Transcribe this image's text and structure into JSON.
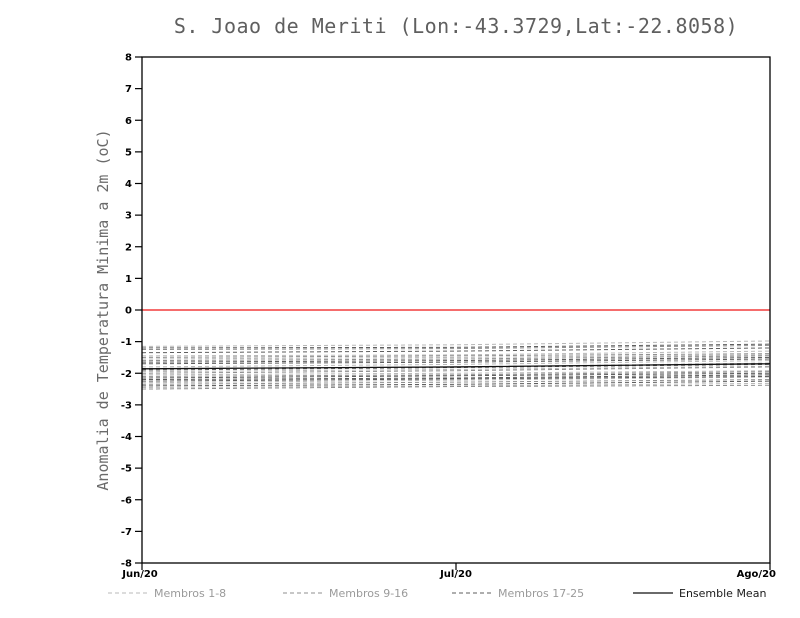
{
  "chart_data": {
    "type": "line",
    "title": "S. Joao de Meriti (Lon:-43.3729,Lat:-22.8058)",
    "xlabel": "",
    "ylabel": "Anomalia de Temperatura Minima a 2m (oC)",
    "ylim": [
      -8,
      8
    ],
    "y_tick_step": 1,
    "grid": false,
    "legend_position": "bottom",
    "x_tick_labels": [
      "Jun/20",
      "Jul/20",
      "Ago/20"
    ],
    "x_positions": [
      0,
      0.5,
      1
    ],
    "zero_line": {
      "y": 0,
      "color": "#f23b3b"
    },
    "groups": [
      {
        "name": "Membros 1-8",
        "color": "#b8b8b8",
        "style": "dashed"
      },
      {
        "name": "Membros 9-16",
        "color": "#8f8f8f",
        "style": "dashed"
      },
      {
        "name": "Membros 17-25",
        "color": "#5e5e5e",
        "style": "dashed"
      }
    ],
    "members": [
      {
        "group": 0,
        "values": [
          -1.15,
          -1.1,
          -0.98
        ]
      },
      {
        "group": 0,
        "values": [
          -1.55,
          -1.5,
          -1.42
        ]
      },
      {
        "group": 0,
        "values": [
          -1.8,
          -1.72,
          -1.6
        ]
      },
      {
        "group": 0,
        "values": [
          -2.05,
          -2.0,
          -1.92
        ]
      },
      {
        "group": 0,
        "values": [
          -2.3,
          -2.22,
          -2.12
        ]
      },
      {
        "group": 0,
        "values": [
          -1.45,
          -1.42,
          -1.3
        ]
      },
      {
        "group": 0,
        "values": [
          -1.95,
          -1.88,
          -1.78
        ]
      },
      {
        "group": 0,
        "values": [
          -2.45,
          -2.4,
          -2.32
        ]
      },
      {
        "group": 1,
        "values": [
          -1.25,
          -1.22,
          -1.12
        ]
      },
      {
        "group": 1,
        "values": [
          -1.6,
          -1.55,
          -1.45
        ]
      },
      {
        "group": 1,
        "values": [
          -1.85,
          -1.8,
          -1.68
        ]
      },
      {
        "group": 1,
        "values": [
          -2.1,
          -2.05,
          -1.95
        ]
      },
      {
        "group": 1,
        "values": [
          -2.35,
          -2.28,
          -2.2
        ]
      },
      {
        "group": 1,
        "values": [
          -1.5,
          -1.45,
          -1.38
        ]
      },
      {
        "group": 1,
        "values": [
          -2.0,
          -1.92,
          -1.8
        ]
      },
      {
        "group": 1,
        "values": [
          -2.5,
          -2.42,
          -2.38
        ]
      },
      {
        "group": 2,
        "values": [
          -1.2,
          -1.18,
          -1.08
        ]
      },
      {
        "group": 2,
        "values": [
          -1.65,
          -1.6,
          -1.5
        ]
      },
      {
        "group": 2,
        "values": [
          -1.9,
          -1.82,
          -1.72
        ]
      },
      {
        "group": 2,
        "values": [
          -2.15,
          -2.08,
          -2.0
        ]
      },
      {
        "group": 2,
        "values": [
          -2.4,
          -2.35,
          -2.25
        ]
      },
      {
        "group": 2,
        "values": [
          -1.7,
          -1.65,
          -1.55
        ]
      },
      {
        "group": 2,
        "values": [
          -2.2,
          -2.15,
          -2.05
        ]
      },
      {
        "group": 2,
        "values": [
          -1.35,
          -1.3,
          -1.2
        ]
      },
      {
        "group": 2,
        "values": [
          -2.25,
          -2.18,
          -2.1
        ]
      }
    ],
    "mean": {
      "name": "Ensemble Mean",
      "color": "#111111",
      "style": "solid",
      "values": [
        -1.86,
        -1.8,
        -1.7
      ]
    }
  }
}
